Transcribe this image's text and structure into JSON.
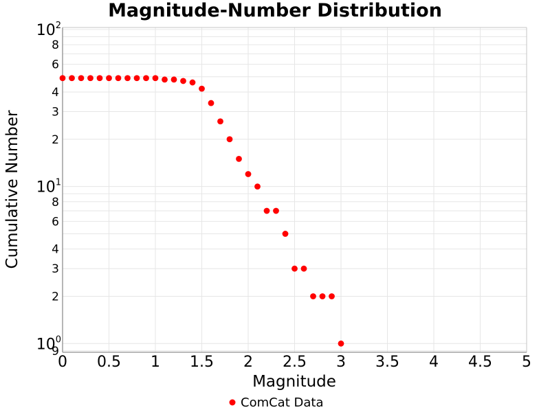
{
  "title": "Magnitude-Number Distribution",
  "legend": {
    "label": "ComCat Data",
    "marker": "red-dot"
  },
  "colors": {
    "marker": "#ff0000",
    "grid": "#e6e6e6",
    "axis_line": "#8f8f8f",
    "outline": "#c4c4c4",
    "text": "#000000"
  },
  "chart_data": {
    "type": "scatter",
    "title": "Magnitude-Number Distribution",
    "xlabel": "Magnitude",
    "ylabel": "Cumulative Number",
    "series": [
      {
        "name": "ComCat Data",
        "x": [
          0.0,
          0.1,
          0.2,
          0.3,
          0.4,
          0.5,
          0.6,
          0.7,
          0.8,
          0.9,
          1.0,
          1.1,
          1.2,
          1.3,
          1.4,
          1.5,
          1.6,
          1.7,
          1.8,
          1.9,
          2.0,
          2.1,
          2.2,
          2.3,
          2.4,
          2.5,
          2.6,
          2.7,
          2.8,
          2.9,
          3.0
        ],
        "y": [
          49,
          49,
          49,
          49,
          49,
          49,
          49,
          49,
          49,
          49,
          49,
          48,
          48,
          47,
          46,
          42,
          34,
          26,
          20,
          15,
          12,
          10,
          7,
          7,
          5,
          3,
          3,
          2,
          2,
          2,
          1
        ]
      }
    ],
    "xlim": [
      0,
      5
    ],
    "yscale": "log",
    "ylim": [
      0.88,
      103
    ],
    "grid": true,
    "legend_position": "bottom-center",
    "x_ticks": [
      {
        "v": 0,
        "label": "0"
      },
      {
        "v": 0.5,
        "label": "0.5"
      },
      {
        "v": 1,
        "label": "1"
      },
      {
        "v": 1.5,
        "label": "1.5"
      },
      {
        "v": 2,
        "label": "2"
      },
      {
        "v": 2.5,
        "label": "2.5"
      },
      {
        "v": 3,
        "label": "3"
      },
      {
        "v": 3.5,
        "label": "3.5"
      },
      {
        "v": 4,
        "label": "4"
      },
      {
        "v": 4.5,
        "label": "4.5"
      },
      {
        "v": 5,
        "label": "5"
      }
    ],
    "y_ticks": [
      {
        "v": 100,
        "base": "10",
        "exp": "2"
      },
      {
        "v": 80,
        "label": "8"
      },
      {
        "v": 60,
        "label": "6"
      },
      {
        "v": 40,
        "label": "4"
      },
      {
        "v": 30,
        "label": "3"
      },
      {
        "v": 20,
        "label": "2"
      },
      {
        "v": 10,
        "base": "10",
        "exp": "1"
      },
      {
        "v": 8,
        "label": "8"
      },
      {
        "v": 6,
        "label": "6"
      },
      {
        "v": 4,
        "label": "4"
      },
      {
        "v": 3,
        "label": "3"
      },
      {
        "v": 2,
        "label": "2"
      },
      {
        "v": 1,
        "base": "10",
        "exp": "0"
      },
      {
        "v": 0.9,
        "label": "9"
      }
    ],
    "y_gridlines": [
      100,
      90,
      80,
      70,
      60,
      50,
      40,
      30,
      20,
      10,
      9,
      8,
      7,
      6,
      5,
      4,
      3,
      2,
      1,
      0.9
    ]
  }
}
